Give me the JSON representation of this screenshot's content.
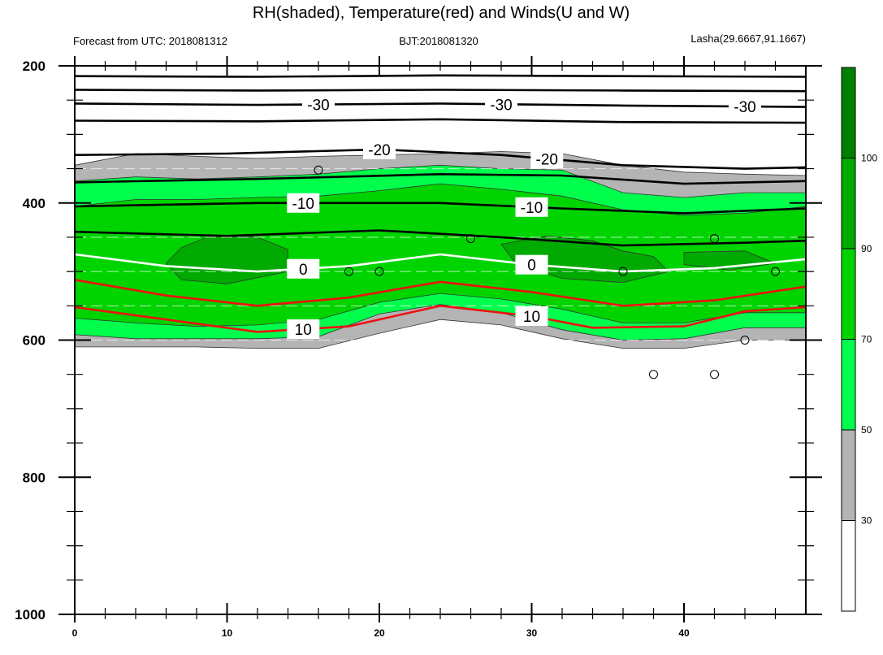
{
  "chart_data": {
    "type": "contour",
    "title": "RH(shaded), Temperature(red) and Winds(U and W)",
    "left_string": "Forecast from UTC: 2018081312",
    "center_string": "BJT:2018081320",
    "right_string": "Lasha(29.6667,91.1667)",
    "x": {
      "range": [
        0,
        48
      ],
      "ticks": [
        0,
        10,
        20,
        30,
        40
      ],
      "tick_labels": [
        "0",
        "10",
        "20",
        "30",
        "40"
      ]
    },
    "y": {
      "range": [
        200,
        1000
      ],
      "inverted": true,
      "ticks": [
        200,
        400,
        600,
        800,
        1000
      ],
      "tick_labels": [
        "200",
        "400",
        "600",
        "800",
        "1000"
      ]
    },
    "colorbar": {
      "levels": [
        30,
        50,
        70,
        90,
        100
      ],
      "labels": [
        "30",
        "50",
        "70",
        "90",
        "100"
      ],
      "colors": [
        "#ffffff",
        "#b4b4b4",
        "#00ff4c",
        "#00d400",
        "#00aa00",
        "#008000"
      ]
    },
    "rh_bands": {
      "gray_top": [
        [
          0,
          345
        ],
        [
          4,
          328
        ],
        [
          8,
          332
        ],
        [
          12,
          335
        ],
        [
          16,
          332
        ],
        [
          20,
          330
        ],
        [
          24,
          328
        ],
        [
          28,
          325
        ],
        [
          32,
          328
        ],
        [
          36,
          345
        ],
        [
          40,
          355
        ],
        [
          44,
          358
        ],
        [
          48,
          360
        ]
      ],
      "gray_bottom": [
        [
          0,
          610
        ],
        [
          4,
          610
        ],
        [
          8,
          610
        ],
        [
          12,
          612
        ],
        [
          16,
          612
        ],
        [
          20,
          590
        ],
        [
          24,
          570
        ],
        [
          28,
          578
        ],
        [
          32,
          598
        ],
        [
          36,
          612
        ],
        [
          40,
          612
        ],
        [
          44,
          600
        ],
        [
          48,
          600
        ]
      ],
      "l50_top": [
        [
          0,
          368
        ],
        [
          4,
          362
        ],
        [
          8,
          365
        ],
        [
          12,
          362
        ],
        [
          16,
          358
        ],
        [
          20,
          350
        ],
        [
          24,
          345
        ],
        [
          28,
          350
        ],
        [
          32,
          352
        ],
        [
          36,
          385
        ],
        [
          40,
          392
        ],
        [
          44,
          385
        ],
        [
          48,
          385
        ]
      ],
      "l50_bottom": [
        [
          0,
          592
        ],
        [
          4,
          598
        ],
        [
          8,
          598
        ],
        [
          12,
          598
        ],
        [
          16,
          595
        ],
        [
          20,
          562
        ],
        [
          24,
          548
        ],
        [
          28,
          560
        ],
        [
          32,
          585
        ],
        [
          36,
          600
        ],
        [
          40,
          598
        ],
        [
          44,
          582
        ],
        [
          48,
          582
        ]
      ],
      "l70_top": [
        [
          0,
          405
        ],
        [
          4,
          395
        ],
        [
          8,
          395
        ],
        [
          12,
          392
        ],
        [
          16,
          390
        ],
        [
          20,
          382
        ],
        [
          24,
          372
        ],
        [
          28,
          380
        ],
        [
          32,
          390
        ],
        [
          36,
          410
        ],
        [
          40,
          418
        ],
        [
          44,
          415
        ],
        [
          48,
          405
        ]
      ],
      "l70_bottom": [
        [
          0,
          568
        ],
        [
          4,
          575
        ],
        [
          8,
          580
        ],
        [
          12,
          578
        ],
        [
          16,
          570
        ],
        [
          20,
          545
        ],
        [
          24,
          532
        ],
        [
          28,
          540
        ],
        [
          32,
          555
        ],
        [
          36,
          575
        ],
        [
          40,
          575
        ],
        [
          44,
          560
        ],
        [
          48,
          560
        ]
      ],
      "l90_patches": [
        [
          [
            7,
            465
          ],
          [
            9,
            447
          ],
          [
            12,
            450
          ],
          [
            14,
            468
          ],
          [
            14,
            500
          ],
          [
            10,
            518
          ],
          [
            7,
            512
          ],
          [
            6,
            488
          ]
        ],
        [
          [
            28,
            460
          ],
          [
            31,
            448
          ],
          [
            34,
            455
          ],
          [
            36,
            470
          ],
          [
            38,
            478
          ],
          [
            39,
            500
          ],
          [
            36,
            516
          ],
          [
            32,
            510
          ],
          [
            29,
            490
          ]
        ],
        [
          [
            40,
            472
          ],
          [
            44,
            470
          ],
          [
            46,
            488
          ],
          [
            43,
            498
          ],
          [
            40,
            490
          ]
        ]
      ]
    },
    "temperature_contours": [
      {
        "value": -30,
        "label": "-30",
        "points": [
          [
            0,
            255
          ],
          [
            12,
            257
          ],
          [
            24,
            255
          ],
          [
            36,
            258
          ],
          [
            48,
            260
          ]
        ]
      },
      {
        "value": -30,
        "label": "",
        "points": [
          [
            0,
            215
          ],
          [
            12,
            216
          ],
          [
            24,
            214
          ],
          [
            36,
            215
          ],
          [
            48,
            216
          ]
        ]
      },
      {
        "value": -30,
        "label": "",
        "points": [
          [
            0,
            235
          ],
          [
            12,
            236
          ],
          [
            24,
            235
          ],
          [
            36,
            236
          ],
          [
            48,
            237
          ]
        ]
      },
      {
        "value": -30,
        "label": "",
        "points": [
          [
            0,
            280
          ],
          [
            12,
            281
          ],
          [
            24,
            278
          ],
          [
            36,
            282
          ],
          [
            48,
            283
          ]
        ]
      },
      {
        "value": -20,
        "label": "-20",
        "points": [
          [
            0,
            330
          ],
          [
            10,
            328
          ],
          [
            20,
            322
          ],
          [
            28,
            330
          ],
          [
            36,
            345
          ],
          [
            44,
            350
          ],
          [
            48,
            348
          ]
        ]
      },
      {
        "value": -20,
        "label": "",
        "points": [
          [
            0,
            370
          ],
          [
            12,
            365
          ],
          [
            24,
            358
          ],
          [
            32,
            360
          ],
          [
            40,
            372
          ],
          [
            48,
            368
          ]
        ]
      },
      {
        "value": -10,
        "label": "-10",
        "points": [
          [
            0,
            405
          ],
          [
            12,
            400
          ],
          [
            24,
            400
          ],
          [
            32,
            408
          ],
          [
            40,
            415
          ],
          [
            48,
            408
          ]
        ]
      },
      {
        "value": -10,
        "label": "",
        "points": [
          [
            0,
            442
          ],
          [
            10,
            448
          ],
          [
            20,
            440
          ],
          [
            28,
            450
          ],
          [
            36,
            462
          ],
          [
            44,
            458
          ],
          [
            48,
            455
          ]
        ]
      },
      {
        "value": 0,
        "label": "0",
        "points": [
          [
            0,
            475
          ],
          [
            6,
            492
          ],
          [
            12,
            500
          ],
          [
            18,
            492
          ],
          [
            24,
            475
          ],
          [
            30,
            490
          ],
          [
            36,
            500
          ],
          [
            42,
            495
          ],
          [
            48,
            482
          ]
        ]
      },
      {
        "value": 5,
        "label": "",
        "points": [
          [
            0,
            512
          ],
          [
            6,
            535
          ],
          [
            12,
            550
          ],
          [
            18,
            538
          ],
          [
            24,
            515
          ],
          [
            30,
            530
          ],
          [
            36,
            550
          ],
          [
            42,
            542
          ],
          [
            48,
            522
          ]
        ]
      },
      {
        "value": 10,
        "label": "10",
        "points": [
          [
            0,
            552
          ],
          [
            6,
            570
          ],
          [
            12,
            588
          ],
          [
            18,
            580
          ],
          [
            24,
            550
          ],
          [
            30,
            565
          ],
          [
            34,
            582
          ],
          [
            40,
            580
          ],
          [
            44,
            558
          ],
          [
            48,
            552
          ]
        ]
      }
    ],
    "wind_circles": [
      [
        16,
        352
      ],
      [
        18,
        500
      ],
      [
        20,
        500
      ],
      [
        26,
        452
      ],
      [
        36,
        500
      ],
      [
        42,
        452
      ],
      [
        46,
        500
      ],
      [
        44,
        600
      ],
      [
        38,
        650
      ],
      [
        42,
        650
      ]
    ]
  }
}
